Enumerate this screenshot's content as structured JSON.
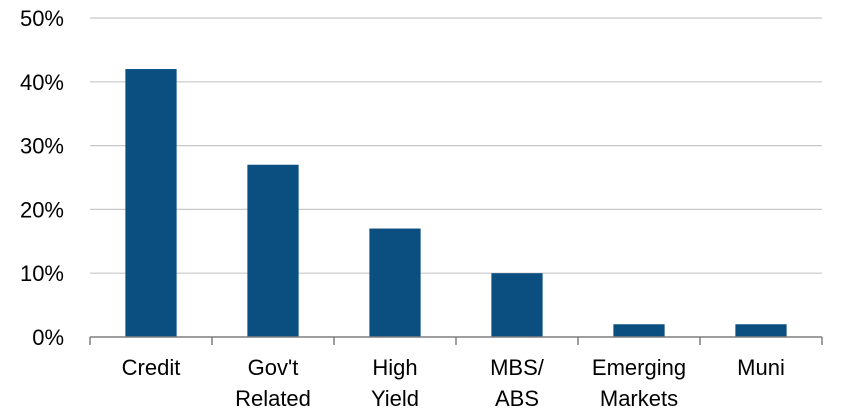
{
  "chart_data": {
    "type": "bar",
    "categories": [
      [
        "Credit"
      ],
      [
        "Gov't",
        "Related"
      ],
      [
        "High",
        "Yield"
      ],
      [
        "MBS/",
        "ABS"
      ],
      [
        "Emerging",
        "Markets"
      ],
      [
        "Muni"
      ]
    ],
    "values": [
      42,
      27,
      17,
      10,
      2,
      2
    ],
    "y_ticks": [
      "0%",
      "10%",
      "20%",
      "30%",
      "40%",
      "50%"
    ],
    "ylim": [
      0,
      50
    ],
    "title": "",
    "xlabel": "",
    "ylabel": "",
    "grid": true,
    "legend": "none",
    "bar_color": "#0b4f80"
  }
}
